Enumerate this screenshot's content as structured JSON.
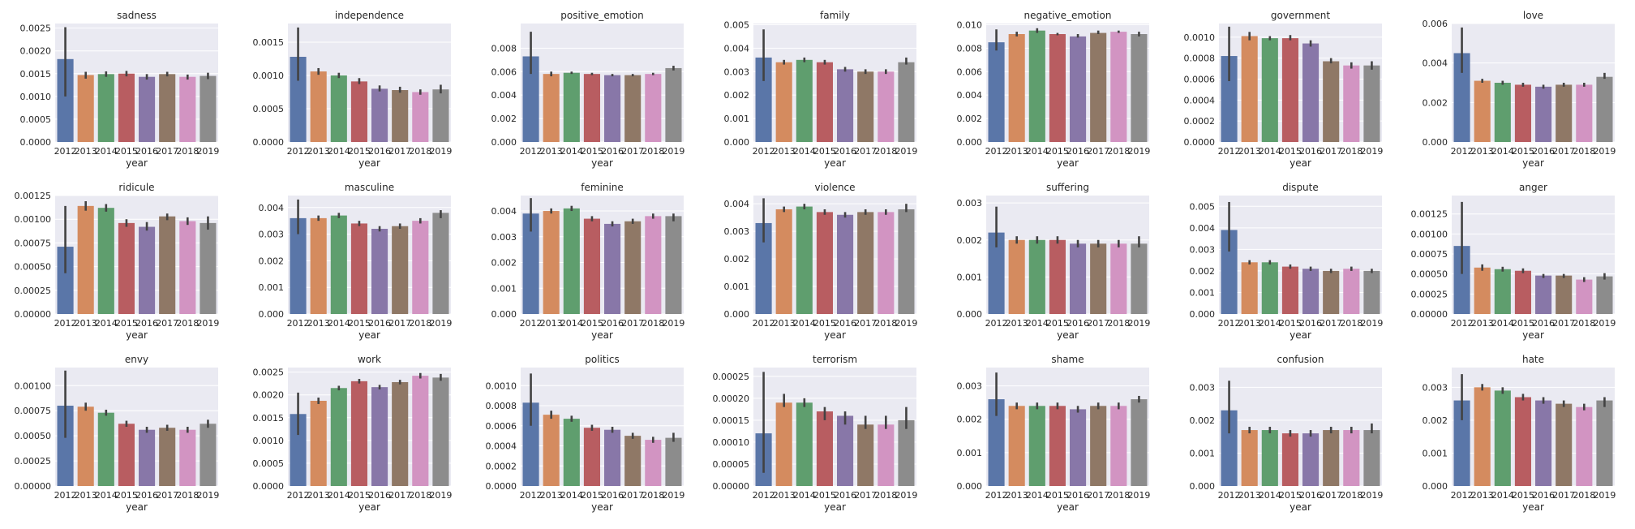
{
  "xlabel": "year",
  "years": [
    "2012",
    "2013",
    "2014",
    "2015",
    "2016",
    "2017",
    "2018",
    "2019"
  ],
  "colors": [
    "#5a76a8",
    "#d48b5f",
    "#5f9e6e",
    "#b85d61",
    "#8877a8",
    "#8f7866",
    "#d294c2",
    "#8c8c8c"
  ],
  "chart_data": [
    {
      "type": "bar",
      "title": "sadness",
      "ylim": [
        0,
        0.0026
      ],
      "yticks": [
        "0.0000",
        "0.0005",
        "0.0010",
        "0.0015",
        "0.0020",
        "0.0025"
      ],
      "values": [
        0.00182,
        0.00147,
        0.00149,
        0.0015,
        0.00143,
        0.00149,
        0.00143,
        0.00145
      ],
      "err": [
        [
          0.001,
          0.00252
        ],
        [
          0.00139,
          0.00154
        ],
        [
          0.00143,
          0.00155
        ],
        [
          0.00144,
          0.00156
        ],
        [
          0.00137,
          0.00149
        ],
        [
          0.00144,
          0.00154
        ],
        [
          0.00137,
          0.00148
        ],
        [
          0.00138,
          0.00152
        ]
      ]
    },
    {
      "type": "bar",
      "title": "independence",
      "ylim": [
        0,
        0.00178
      ],
      "yticks": [
        "0.0000",
        "0.0005",
        "0.0010",
        "0.0015"
      ],
      "values": [
        0.00128,
        0.00106,
        0.001,
        0.00091,
        0.0008,
        0.00078,
        0.00075,
        0.00079
      ],
      "err": [
        [
          0.00092,
          0.00172
        ],
        [
          0.00101,
          0.00111
        ],
        [
          0.00096,
          0.00104
        ],
        [
          0.00087,
          0.00096
        ],
        [
          0.00076,
          0.00085
        ],
        [
          0.00074,
          0.00083
        ],
        [
          0.00071,
          0.00079
        ],
        [
          0.00073,
          0.00086
        ]
      ]
    },
    {
      "type": "bar",
      "title": "positive_emotion",
      "ylim": [
        0,
        0.0101
      ],
      "yticks": [
        "0.000",
        "0.002",
        "0.004",
        "0.006",
        "0.008"
      ],
      "values": [
        0.0073,
        0.0058,
        0.0059,
        0.0058,
        0.0057,
        0.0057,
        0.0058,
        0.0063
      ],
      "err": [
        [
          0.0058,
          0.0094
        ],
        [
          0.0056,
          0.006
        ],
        [
          0.0058,
          0.006
        ],
        [
          0.0057,
          0.0059
        ],
        [
          0.0056,
          0.0058
        ],
        [
          0.0056,
          0.0058
        ],
        [
          0.0057,
          0.0059
        ],
        [
          0.0061,
          0.0065
        ]
      ]
    },
    {
      "type": "bar",
      "title": "family",
      "ylim": [
        0,
        0.00505
      ],
      "yticks": [
        "0.000",
        "0.001",
        "0.002",
        "0.003",
        "0.004",
        "0.005"
      ],
      "values": [
        0.0036,
        0.0034,
        0.0035,
        0.0034,
        0.0031,
        0.003,
        0.003,
        0.0034
      ],
      "err": [
        [
          0.0026,
          0.0048
        ],
        [
          0.0033,
          0.0035
        ],
        [
          0.0034,
          0.0036
        ],
        [
          0.0033,
          0.0035
        ],
        [
          0.003,
          0.0032
        ],
        [
          0.0029,
          0.0031
        ],
        [
          0.0029,
          0.0031
        ],
        [
          0.0033,
          0.0036
        ]
      ]
    },
    {
      "type": "bar",
      "title": "negative_emotion",
      "ylim": [
        0,
        0.0101
      ],
      "yticks": [
        "0.000",
        "0.002",
        "0.004",
        "0.006",
        "0.008",
        "0.010"
      ],
      "values": [
        0.0085,
        0.0092,
        0.0095,
        0.0092,
        0.009,
        0.0093,
        0.0094,
        0.0092
      ],
      "err": [
        [
          0.0078,
          0.0096
        ],
        [
          0.009,
          0.0094
        ],
        [
          0.0093,
          0.0097
        ],
        [
          0.0091,
          0.0093
        ],
        [
          0.0089,
          0.0092
        ],
        [
          0.0092,
          0.0095
        ],
        [
          0.0093,
          0.0095
        ],
        [
          0.009,
          0.0094
        ]
      ]
    },
    {
      "type": "bar",
      "title": "government",
      "ylim": [
        0,
        0.00113
      ],
      "yticks": [
        "0.0000",
        "0.0002",
        "0.0004",
        "0.0006",
        "0.0008",
        "0.0010"
      ],
      "values": [
        0.00082,
        0.00101,
        0.00099,
        0.00099,
        0.00094,
        0.00077,
        0.00073,
        0.00073
      ],
      "err": [
        [
          0.00058,
          0.0011
        ],
        [
          0.00097,
          0.00105
        ],
        [
          0.00097,
          0.00101
        ],
        [
          0.00097,
          0.00102
        ],
        [
          0.00091,
          0.00097
        ],
        [
          0.00075,
          0.0008
        ],
        [
          0.0007,
          0.00076
        ],
        [
          0.00069,
          0.00077
        ]
      ]
    },
    {
      "type": "bar",
      "title": "love",
      "ylim": [
        0,
        0.006
      ],
      "yticks": [
        "0.000",
        "0.002",
        "0.004",
        "0.006"
      ],
      "values": [
        0.0045,
        0.0031,
        0.003,
        0.0029,
        0.0028,
        0.0029,
        0.0029,
        0.0033
      ],
      "err": [
        [
          0.0035,
          0.0058
        ],
        [
          0.003,
          0.0032
        ],
        [
          0.0029,
          0.0031
        ],
        [
          0.0028,
          0.003
        ],
        [
          0.0027,
          0.0029
        ],
        [
          0.0028,
          0.003
        ],
        [
          0.0028,
          0.003
        ],
        [
          0.0032,
          0.0035
        ]
      ]
    },
    {
      "type": "bar",
      "title": "ridicule",
      "ylim": [
        0,
        0.00125
      ],
      "yticks": [
        "0.00000",
        "0.00025",
        "0.00050",
        "0.00075",
        "0.00100",
        "0.00125"
      ],
      "values": [
        0.00071,
        0.00114,
        0.00112,
        0.00096,
        0.00092,
        0.00103,
        0.00098,
        0.00096
      ],
      "err": [
        [
          0.00043,
          0.00114
        ],
        [
          0.00109,
          0.00119
        ],
        [
          0.00108,
          0.00116
        ],
        [
          0.00092,
          0.001
        ],
        [
          0.00088,
          0.00097
        ],
        [
          0.00099,
          0.00106
        ],
        [
          0.00094,
          0.00102
        ],
        [
          0.00089,
          0.00103
        ]
      ]
    },
    {
      "type": "bar",
      "title": "masculine",
      "ylim": [
        0,
        0.00445
      ],
      "yticks": [
        "0.000",
        "0.001",
        "0.002",
        "0.003",
        "0.004"
      ],
      "values": [
        0.0036,
        0.0036,
        0.0037,
        0.0034,
        0.0032,
        0.0033,
        0.0035,
        0.0038
      ],
      "err": [
        [
          0.003,
          0.0043
        ],
        [
          0.0035,
          0.0037
        ],
        [
          0.0036,
          0.0038
        ],
        [
          0.0033,
          0.0035
        ],
        [
          0.0031,
          0.0033
        ],
        [
          0.0032,
          0.0034
        ],
        [
          0.0034,
          0.0036
        ],
        [
          0.0036,
          0.0039
        ]
      ]
    },
    {
      "type": "bar",
      "title": "feminine",
      "ylim": [
        0,
        0.0046
      ],
      "yticks": [
        "0.000",
        "0.001",
        "0.002",
        "0.003",
        "0.004"
      ],
      "values": [
        0.0039,
        0.004,
        0.0041,
        0.0037,
        0.0035,
        0.0036,
        0.0038,
        0.0038
      ],
      "err": [
        [
          0.0032,
          0.0045
        ],
        [
          0.0039,
          0.0041
        ],
        [
          0.004,
          0.0042
        ],
        [
          0.0036,
          0.0038
        ],
        [
          0.0034,
          0.0036
        ],
        [
          0.0035,
          0.0037
        ],
        [
          0.0037,
          0.0039
        ],
        [
          0.0036,
          0.0039
        ]
      ]
    },
    {
      "type": "bar",
      "title": "violence",
      "ylim": [
        0,
        0.0043
      ],
      "yticks": [
        "0.000",
        "0.001",
        "0.002",
        "0.003",
        "0.004"
      ],
      "values": [
        0.0033,
        0.0038,
        0.0039,
        0.0037,
        0.0036,
        0.0037,
        0.0037,
        0.0038
      ],
      "err": [
        [
          0.0026,
          0.0042
        ],
        [
          0.0037,
          0.0039
        ],
        [
          0.0038,
          0.004
        ],
        [
          0.0036,
          0.0038
        ],
        [
          0.0035,
          0.0037
        ],
        [
          0.0036,
          0.0038
        ],
        [
          0.0036,
          0.0038
        ],
        [
          0.0037,
          0.004
        ]
      ]
    },
    {
      "type": "bar",
      "title": "suffering",
      "ylim": [
        0,
        0.0032
      ],
      "yticks": [
        "0.000",
        "0.001",
        "0.002",
        "0.003"
      ],
      "values": [
        0.0022,
        0.002,
        0.002,
        0.002,
        0.0019,
        0.0019,
        0.0019,
        0.0019
      ],
      "err": [
        [
          0.0018,
          0.0029
        ],
        [
          0.0019,
          0.0021
        ],
        [
          0.0019,
          0.0021
        ],
        [
          0.0019,
          0.0021
        ],
        [
          0.0018,
          0.002
        ],
        [
          0.0018,
          0.002
        ],
        [
          0.0018,
          0.002
        ],
        [
          0.0018,
          0.0021
        ]
      ]
    },
    {
      "type": "bar",
      "title": "dispute",
      "ylim": [
        0,
        0.0055
      ],
      "yticks": [
        "0.000",
        "0.001",
        "0.002",
        "0.003",
        "0.004",
        "0.005"
      ],
      "values": [
        0.0039,
        0.0024,
        0.0024,
        0.0022,
        0.0021,
        0.002,
        0.0021,
        0.002
      ],
      "err": [
        [
          0.0029,
          0.0052
        ],
        [
          0.0023,
          0.0025
        ],
        [
          0.0023,
          0.0025
        ],
        [
          0.0021,
          0.0023
        ],
        [
          0.002,
          0.0022
        ],
        [
          0.0019,
          0.0021
        ],
        [
          0.002,
          0.0022
        ],
        [
          0.0019,
          0.0021
        ]
      ]
    },
    {
      "type": "bar",
      "title": "anger",
      "ylim": [
        0,
        0.00148
      ],
      "yticks": [
        "0.00000",
        "0.00025",
        "0.00050",
        "0.00075",
        "0.00100",
        "0.00125"
      ],
      "values": [
        0.00085,
        0.00058,
        0.00056,
        0.00054,
        0.00048,
        0.00048,
        0.00043,
        0.00047
      ],
      "err": [
        [
          0.0005,
          0.0014
        ],
        [
          0.00054,
          0.00062
        ],
        [
          0.00053,
          0.00059
        ],
        [
          0.00051,
          0.00057
        ],
        [
          0.00045,
          0.0005
        ],
        [
          0.00045,
          0.0005
        ],
        [
          0.0004,
          0.00046
        ],
        [
          0.00043,
          0.00051
        ]
      ]
    },
    {
      "type": "bar",
      "title": "envy",
      "ylim": [
        0,
        0.00118
      ],
      "yticks": [
        "0.00000",
        "0.00025",
        "0.00050",
        "0.00075",
        "0.00100"
      ],
      "values": [
        0.0008,
        0.00079,
        0.00073,
        0.00062,
        0.00056,
        0.00058,
        0.00056,
        0.00062
      ],
      "err": [
        [
          0.00048,
          0.00115
        ],
        [
          0.00075,
          0.00083
        ],
        [
          0.0007,
          0.00076
        ],
        [
          0.00059,
          0.00065
        ],
        [
          0.00053,
          0.00059
        ],
        [
          0.00055,
          0.00061
        ],
        [
          0.00053,
          0.00059
        ],
        [
          0.00058,
          0.00066
        ]
      ]
    },
    {
      "type": "bar",
      "title": "work",
      "ylim": [
        0,
        0.0026
      ],
      "yticks": [
        "0.0000",
        "0.0005",
        "0.0010",
        "0.0015",
        "0.0020",
        "0.0025"
      ],
      "values": [
        0.00158,
        0.00187,
        0.00215,
        0.0023,
        0.00217,
        0.00228,
        0.00242,
        0.00238
      ],
      "err": [
        [
          0.00112,
          0.00205
        ],
        [
          0.0018,
          0.00194
        ],
        [
          0.0021,
          0.0022
        ],
        [
          0.00225,
          0.00235
        ],
        [
          0.00212,
          0.00222
        ],
        [
          0.00223,
          0.00233
        ],
        [
          0.00236,
          0.00248
        ],
        [
          0.00231,
          0.00246
        ]
      ]
    },
    {
      "type": "bar",
      "title": "politics",
      "ylim": [
        0,
        0.00118
      ],
      "yticks": [
        "0.0000",
        "0.0002",
        "0.0004",
        "0.0006",
        "0.0008",
        "0.0010"
      ],
      "values": [
        0.00083,
        0.00071,
        0.00067,
        0.00058,
        0.00056,
        0.0005,
        0.00046,
        0.00048
      ],
      "err": [
        [
          0.0006,
          0.00112
        ],
        [
          0.00067,
          0.00075
        ],
        [
          0.00064,
          0.0007
        ],
        [
          0.00055,
          0.00061
        ],
        [
          0.00053,
          0.00059
        ],
        [
          0.00047,
          0.00053
        ],
        [
          0.00043,
          0.00049
        ],
        [
          0.00044,
          0.00053
        ]
      ]
    },
    {
      "type": "bar",
      "title": "terrorism",
      "ylim": [
        0,
        0.00027
      ],
      "yticks": [
        "0.00000",
        "0.00005",
        "0.00010",
        "0.00015",
        "0.00020",
        "0.00025"
      ],
      "values": [
        0.00012,
        0.00019,
        0.00019,
        0.00017,
        0.00016,
        0.00014,
        0.00014,
        0.00015
      ],
      "err": [
        [
          3e-05,
          0.00026
        ],
        [
          0.00018,
          0.00021
        ],
        [
          0.00018,
          0.0002
        ],
        [
          0.00015,
          0.00018
        ],
        [
          0.00014,
          0.00017
        ],
        [
          0.00013,
          0.00016
        ],
        [
          0.00013,
          0.00016
        ],
        [
          0.00013,
          0.00018
        ]
      ]
    },
    {
      "type": "bar",
      "title": "shame",
      "ylim": [
        0,
        0.00355
      ],
      "yticks": [
        "0.000",
        "0.001",
        "0.002",
        "0.003"
      ],
      "values": [
        0.0026,
        0.0024,
        0.0024,
        0.0024,
        0.0023,
        0.0024,
        0.0024,
        0.0026
      ],
      "err": [
        [
          0.0021,
          0.0034
        ],
        [
          0.0023,
          0.0025
        ],
        [
          0.0023,
          0.0025
        ],
        [
          0.0023,
          0.0025
        ],
        [
          0.0022,
          0.0024
        ],
        [
          0.0023,
          0.0025
        ],
        [
          0.0023,
          0.0025
        ],
        [
          0.0025,
          0.0027
        ]
      ]
    },
    {
      "type": "bar",
      "title": "confusion",
      "ylim": [
        0,
        0.0036
      ],
      "yticks": [
        "0.000",
        "0.001",
        "0.002",
        "0.003"
      ],
      "values": [
        0.0023,
        0.0017,
        0.0017,
        0.0016,
        0.0016,
        0.0017,
        0.0017,
        0.0017
      ],
      "err": [
        [
          0.0016,
          0.0032
        ],
        [
          0.0016,
          0.0018
        ],
        [
          0.0016,
          0.0018
        ],
        [
          0.0015,
          0.0017
        ],
        [
          0.0015,
          0.0017
        ],
        [
          0.0016,
          0.0018
        ],
        [
          0.0016,
          0.0018
        ],
        [
          0.0016,
          0.0019
        ]
      ]
    },
    {
      "type": "bar",
      "title": "hate",
      "ylim": [
        0,
        0.0036
      ],
      "yticks": [
        "0.000",
        "0.001",
        "0.002",
        "0.003"
      ],
      "values": [
        0.0026,
        0.003,
        0.0029,
        0.0027,
        0.0026,
        0.0025,
        0.0024,
        0.0026
      ],
      "err": [
        [
          0.002,
          0.0034
        ],
        [
          0.0029,
          0.0031
        ],
        [
          0.0028,
          0.003
        ],
        [
          0.0026,
          0.0028
        ],
        [
          0.0025,
          0.0027
        ],
        [
          0.0024,
          0.0026
        ],
        [
          0.0023,
          0.0025
        ],
        [
          0.0024,
          0.0027
        ]
      ]
    }
  ]
}
